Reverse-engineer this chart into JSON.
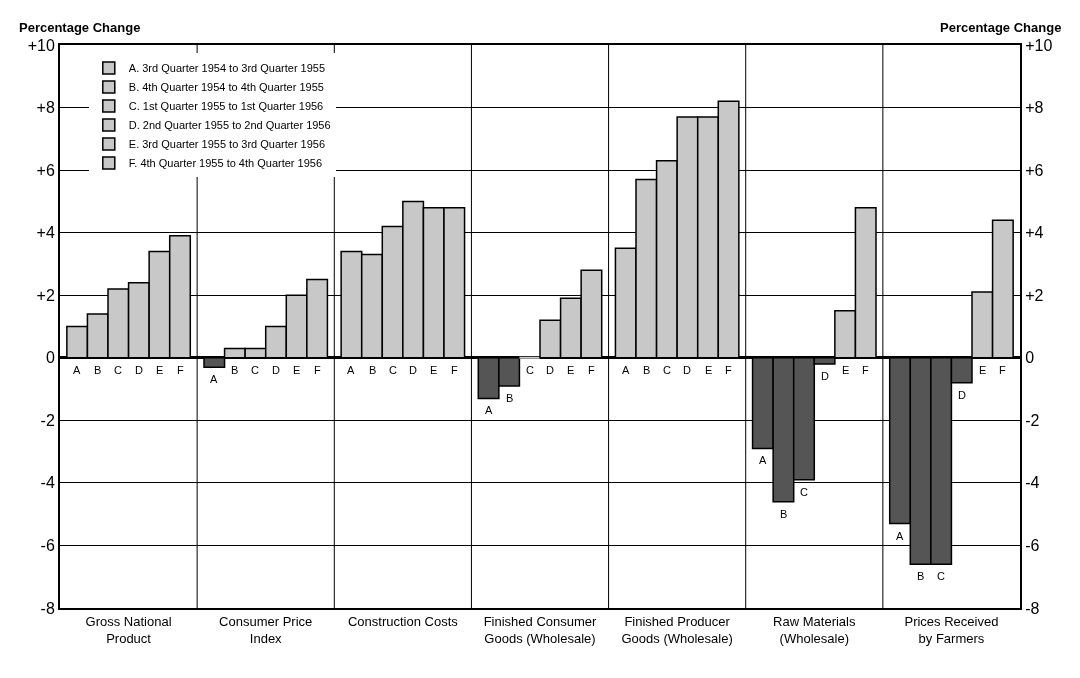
{
  "chart_data": {
    "type": "bar",
    "categories": [
      "Gross National\nProduct",
      "Consumer Price\nIndex",
      "Construction Costs",
      "Finished Consumer\nGoods (Wholesale)",
      "Finished Producer\nGoods (Wholesale)",
      "Raw Materials\n(Wholesale)",
      "Prices Received\nby Farmers"
    ],
    "series": [
      {
        "name": "A. 3rd Quarter 1954 to 3rd Quarter 1955",
        "values": [
          1.0,
          -0.3,
          3.4,
          -1.3,
          3.5,
          -2.9,
          -5.3
        ],
        "colors": [
          "#c8c8c8",
          "#555555",
          "#c8c8c8",
          "#555555",
          "#c8c8c8",
          "#555555",
          "#555555"
        ],
        "value_labels": [
          "A",
          "A",
          "A",
          "A",
          "A",
          "A",
          "A"
        ]
      },
      {
        "name": "B. 4th Quarter 1954 to 4th Quarter 1955",
        "values": [
          1.4,
          0.3,
          3.3,
          -0.9,
          5.7,
          -4.6,
          -6.6
        ],
        "colors": [
          "#c8c8c8",
          "#c8c8c8",
          "#c8c8c8",
          "#555555",
          "#c8c8c8",
          "#555555",
          "#555555"
        ],
        "value_labels": [
          "B",
          "B",
          "B",
          "B",
          "B",
          "B",
          "B"
        ]
      },
      {
        "name": "C. 1st Quarter 1955 to 1st Quarter 1956",
        "values": [
          2.2,
          0.3,
          4.2,
          0,
          6.3,
          -3.9,
          -6.6
        ],
        "colors": [
          "#c8c8c8",
          "#c8c8c8",
          "#c8c8c8",
          "#c8c8c8",
          "#c8c8c8",
          "#555555",
          "#555555"
        ],
        "value_labels": [
          "C",
          "C",
          "C",
          "C",
          "C",
          "C",
          "C"
        ]
      },
      {
        "name": "D. 2nd Quarter 1955 to 2nd Quarter 1956",
        "values": [
          2.4,
          1.0,
          5.0,
          1.2,
          7.7,
          -0.2,
          -0.8
        ],
        "colors": [
          "#c8c8c8",
          "#c8c8c8",
          "#c8c8c8",
          "#c8c8c8",
          "#c8c8c8",
          "#555555",
          "#555555"
        ],
        "value_labels": [
          "D",
          "D",
          "D",
          "D",
          "D",
          "D",
          "D"
        ]
      },
      {
        "name": "E. 3rd Quarter 1955 to 3rd Quarter 1956",
        "values": [
          3.4,
          2.0,
          4.8,
          1.9,
          7.7,
          1.5,
          2.1
        ],
        "colors": [
          "#c8c8c8",
          "#c8c8c8",
          "#c8c8c8",
          "#c8c8c8",
          "#c8c8c8",
          "#c8c8c8",
          "#c8c8c8"
        ],
        "value_labels": [
          "E",
          "E",
          "E",
          "E",
          "E",
          "E",
          "E"
        ]
      },
      {
        "name": "F. 4th Quarter 1955 to 4th Quarter 1956",
        "values": [
          3.9,
          2.5,
          4.8,
          2.8,
          8.2,
          4.8,
          4.4
        ],
        "colors": [
          "#c8c8c8",
          "#c8c8c8",
          "#c8c8c8",
          "#c8c8c8",
          "#c8c8c8",
          "#c8c8c8",
          "#c8c8c8"
        ],
        "value_labels": [
          "F",
          "F",
          "F",
          "F",
          "F",
          "F",
          "F"
        ]
      }
    ],
    "ylabel": "Percentage Change",
    "y2label": "Percentage Change",
    "ylim": [
      -8,
      10
    ],
    "yticks": [
      {
        "value": 10,
        "label": "+10"
      },
      {
        "value": 8,
        "label": "+8"
      },
      {
        "value": 6,
        "label": "+6"
      },
      {
        "value": 4,
        "label": "+4"
      },
      {
        "value": 2,
        "label": "+2"
      },
      0,
      -2,
      -4,
      -6,
      -8
    ],
    "y2lim": [
      -8,
      10
    ],
    "y2ticks": [
      {
        "value": 10,
        "label": "+10"
      },
      {
        "value": 8,
        "label": "+8"
      },
      {
        "value": 6,
        "label": "+6"
      },
      {
        "value": 4,
        "label": "+4"
      },
      {
        "value": 2,
        "label": "+2"
      },
      0,
      -2,
      -4,
      -6,
      -8
    ],
    "grid": true,
    "legend": "top left"
  }
}
